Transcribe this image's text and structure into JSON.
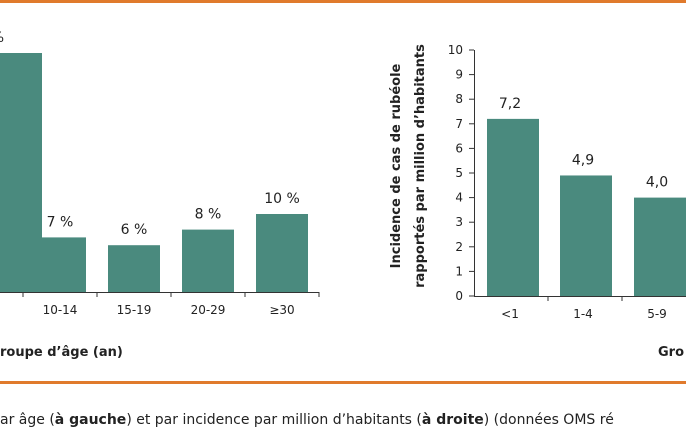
{
  "chart_data": [
    {
      "type": "bar",
      "categories": [
        "",
        "10-14",
        "15-19",
        "20-29",
        "≥30"
      ],
      "values": [
        null,
        7,
        6,
        8,
        10
      ],
      "data_labels": [
        "%",
        "7 %",
        "6 %",
        "8 %",
        "10 %"
      ],
      "title": "",
      "xlabel": "roupe d’âge (an)",
      "ylabel": "",
      "bar_color": "#4a8a7e"
    },
    {
      "type": "bar",
      "categories": [
        "<1",
        "1-4",
        "5-9"
      ],
      "values": [
        7.2,
        4.9,
        4.0
      ],
      "data_labels": [
        "7,2",
        "4,9",
        "4,0"
      ],
      "yticks": [
        "0",
        "1",
        "2",
        "3",
        "4",
        "5",
        "6",
        "7",
        "8",
        "9",
        "10"
      ],
      "ylim": [
        0,
        10
      ],
      "title": "",
      "xlabel": "Gro",
      "ylabel_line1": "Incidence de cas de rubéole",
      "ylabel_line2": "rapportés par million d’habitants",
      "bar_color": "#4a8a7e"
    }
  ],
  "caption": {
    "part1": "ar âge (",
    "bold1": "à gauche",
    "part2": ") et par incidence par million d’habitants (",
    "bold2": "à droite",
    "part3": ") (données OMS ré"
  },
  "colors": {
    "accent_rule": "#e07a2c",
    "bar": "#4a8a7e"
  }
}
